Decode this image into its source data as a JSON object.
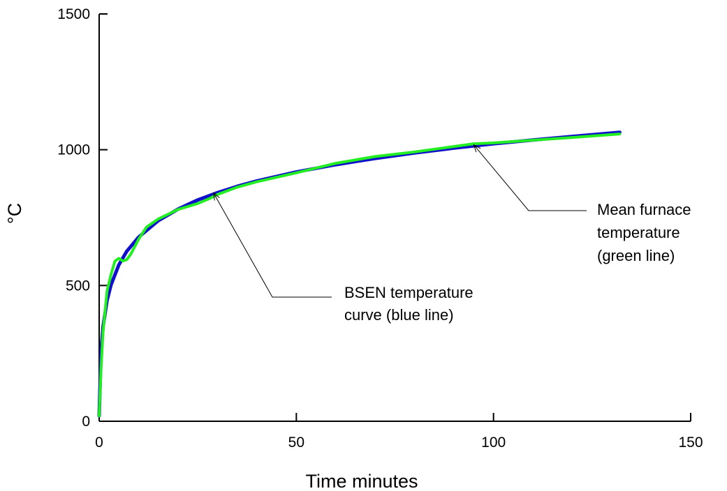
{
  "chart_data": {
    "type": "line",
    "title": "",
    "xlabel": "Time minutes",
    "ylabel": "°C",
    "xlim": [
      0,
      150
    ],
    "ylim": [
      0,
      1500
    ],
    "xticks": [
      0,
      50,
      100,
      150
    ],
    "yticks": [
      0,
      500,
      1000,
      1500
    ],
    "grid": false,
    "series": [
      {
        "color": "#1010cc",
        "x": [
          0,
          0.5,
          1,
          2,
          3,
          5,
          7,
          10,
          15,
          20,
          25,
          30,
          35,
          40,
          50,
          60,
          70,
          80,
          90,
          100,
          110,
          120,
          132
        ],
        "y": [
          20,
          261,
          349,
          445,
          502,
          576,
          626,
          678,
          739,
          781,
          815,
          842,
          865,
          885,
          918,
          945,
          968,
          988,
          1006,
          1022,
          1036,
          1049,
          1064
        ]
      },
      {
        "color": "#22ee22",
        "x": [
          0,
          0.5,
          1,
          2,
          3,
          4,
          5,
          6,
          7,
          8,
          10,
          12,
          15,
          20,
          25,
          28,
          30,
          35,
          40,
          50,
          60,
          70,
          80,
          90,
          95,
          100,
          110,
          120,
          132
        ],
        "y": [
          20,
          200,
          330,
          480,
          540,
          590,
          600,
          590,
          595,
          615,
          670,
          715,
          745,
          780,
          802,
          820,
          835,
          862,
          882,
          915,
          950,
          975,
          992,
          1012,
          1022,
          1025,
          1035,
          1045,
          1058
        ]
      }
    ],
    "annotations": [
      {
        "lines": [
          "BSEN temperature",
          "curve (blue line)"
        ],
        "target": [
          29,
          841
        ]
      },
      {
        "lines": [
          "Mean furnace",
          "temperature",
          "(green line)"
        ],
        "target": [
          95,
          1018
        ]
      }
    ]
  }
}
